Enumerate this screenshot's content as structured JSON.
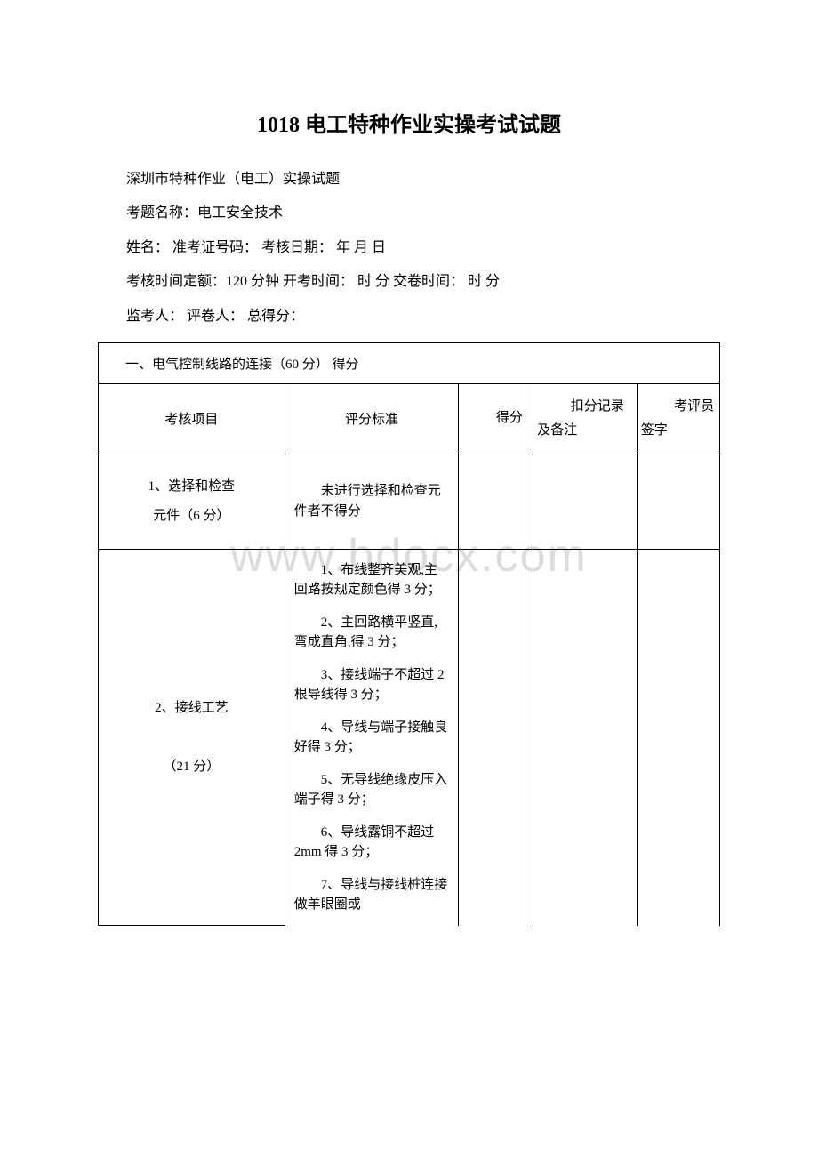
{
  "title": "1018 电工特种作业实操考试试题",
  "meta": {
    "line1": "深圳市特种作业（电工）实操试题",
    "line2": "考题名称：电工安全技术",
    "line3": "姓名：  准考证号码：  考核日期：  年 月 日",
    "line4": "考核时间定额：120 分钟 开考时间：  时 分 交卷时间：  时 分",
    "line5": "监考人：   评卷人：   总得分："
  },
  "table": {
    "section_header": "一、电气控制线路的连接（60 分）  得分",
    "headers": {
      "item": "考核项目",
      "criteria": "评分标准",
      "score": "得分",
      "deduct": "扣分记录及备注",
      "sign": "考评员签字"
    },
    "rows": [
      {
        "item_line1": "1、选择和检查",
        "item_line2": "元件（6 分）",
        "criteria": "未进行选择和检查元件者不得分"
      },
      {
        "item_line1": "2、接线工艺",
        "item_line2": "（21 分）",
        "criteria_list": [
          "1、布线整齐美观,主回路按规定颜色得 3 分；",
          "2、主回路横平竖直,弯成直角,得 3 分；",
          "3、接线端子不超过 2 根导线得 3 分；",
          "4、导线与端子接触良好得 3 分；",
          "5、无导线绝缘皮压入端子得 3 分；",
          "6、导线露铜不超过 2mm 得 3 分；",
          "7、导线与接线桩连接做羊眼圈或"
        ]
      }
    ]
  },
  "watermark": "www.bdocx.com",
  "colors": {
    "text": "#000000",
    "background": "#ffffff",
    "border": "#000000",
    "watermark": "#dcdcdc"
  }
}
